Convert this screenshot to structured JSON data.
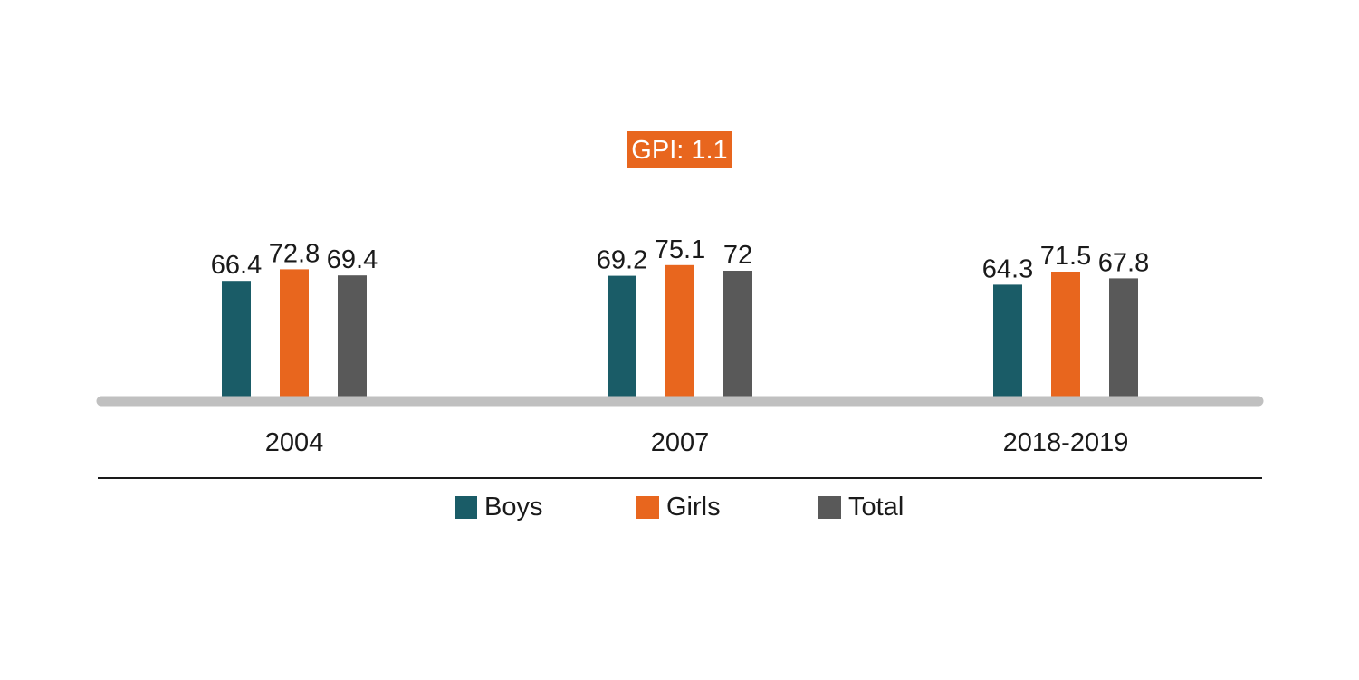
{
  "chart_data": {
    "type": "bar",
    "categories": [
      "2004",
      "2007",
      "2018-2019"
    ],
    "series": [
      {
        "name": "Boys",
        "color": "#1a5c67",
        "values": [
          66.4,
          69.2,
          64.3
        ]
      },
      {
        "name": "Girls",
        "color": "#e8661e",
        "values": [
          72.8,
          75.1,
          71.5
        ]
      },
      {
        "name": "Total",
        "color": "#595959",
        "values": [
          69.4,
          72,
          67.8
        ]
      }
    ],
    "value_labels": [
      [
        "66.4",
        "69.2",
        "64.3"
      ],
      [
        "72.8",
        "75.1",
        "71.5"
      ],
      [
        "69.4",
        "72",
        "67.8"
      ]
    ],
    "title": "",
    "xlabel": "",
    "ylabel": "",
    "ylim": [
      0,
      100
    ],
    "grid": false,
    "legend_position": "bottom",
    "baseline_color": "#c0c0c0",
    "annotation": {
      "text": "GPI: 1.1",
      "background": "#e8661e"
    }
  }
}
